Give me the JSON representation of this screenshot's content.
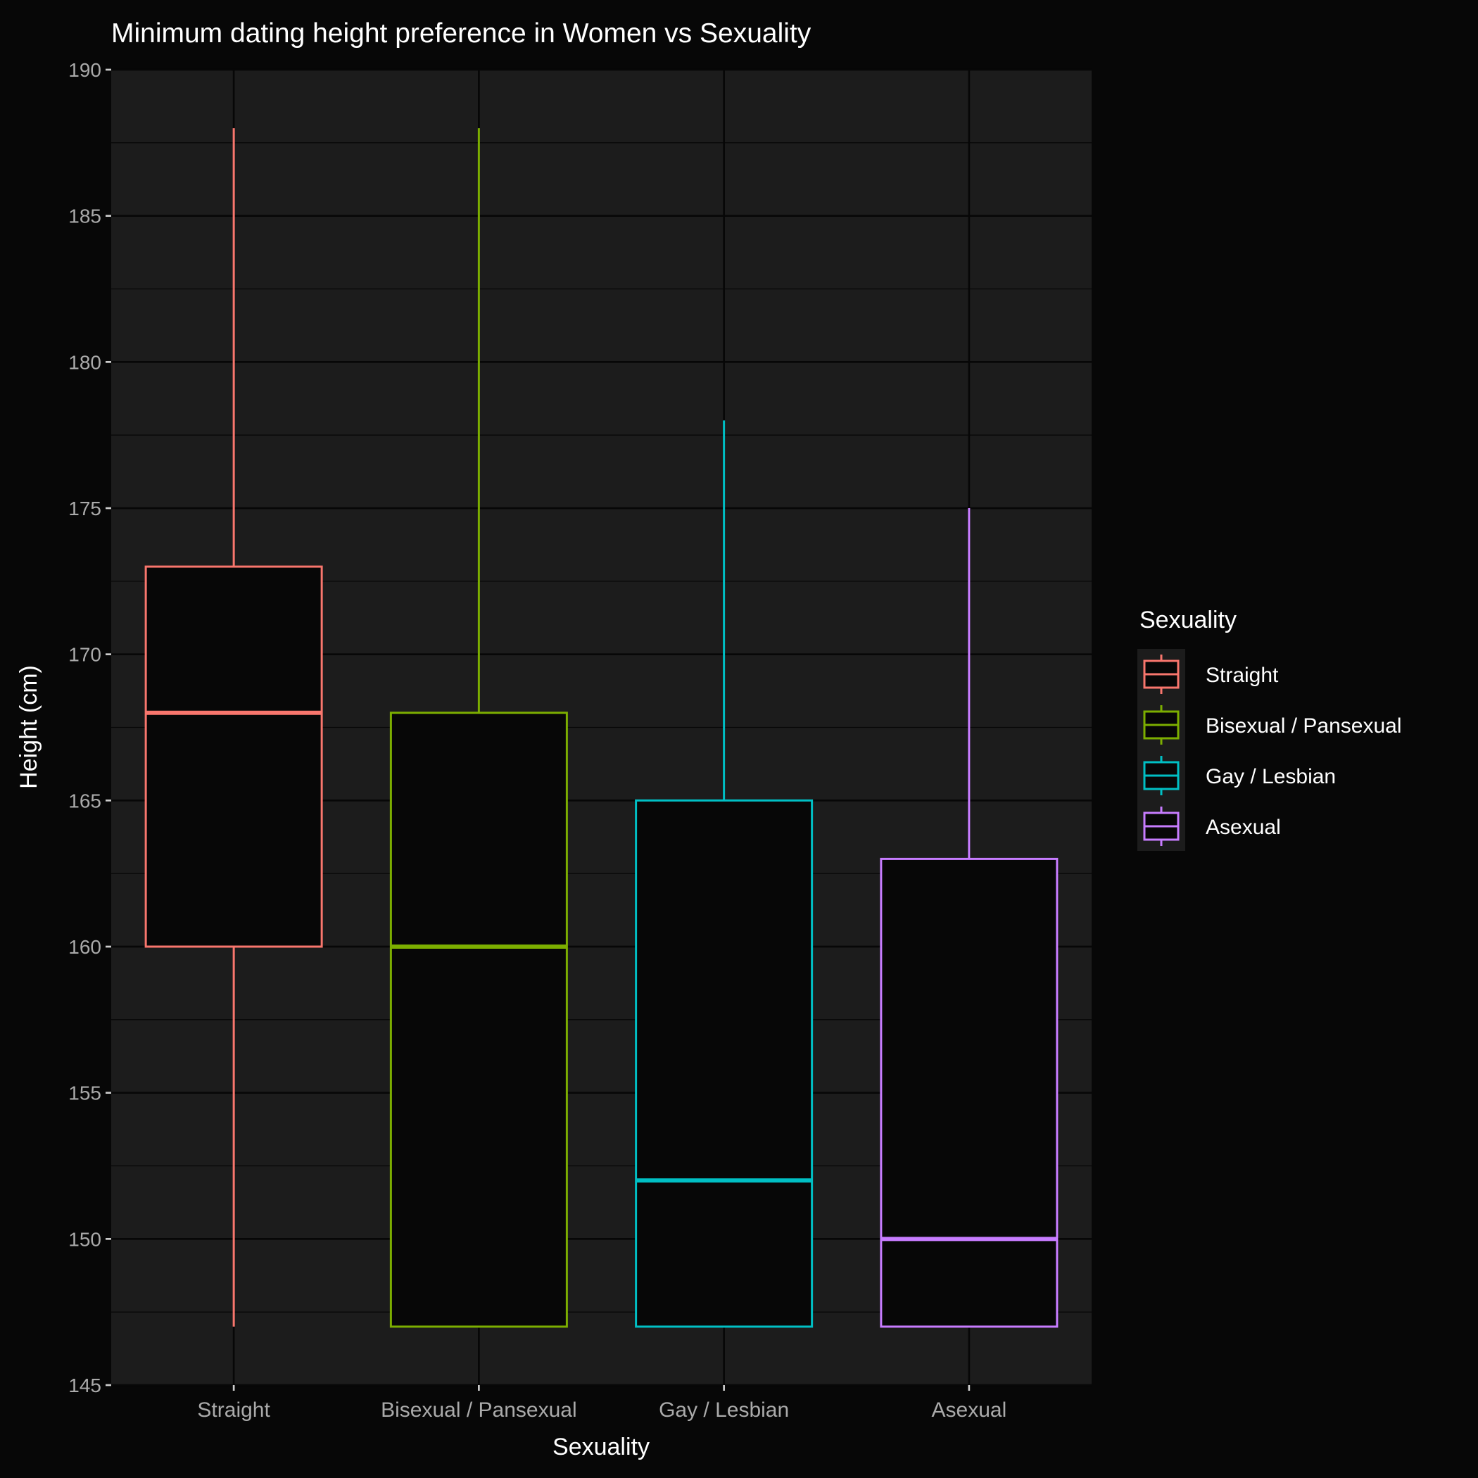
{
  "chart_data": {
    "type": "boxplot",
    "title": "Minimum dating height preference in Women vs Sexuality",
    "xlabel": "Sexuality",
    "ylabel": "Height (cm)",
    "ylim": [
      145,
      190
    ],
    "yticks": [
      145,
      150,
      155,
      160,
      165,
      170,
      175,
      180,
      185,
      190
    ],
    "categories": [
      "Straight",
      "Bisexual / Pansexual",
      "Gay / Lesbian",
      "Asexual"
    ],
    "series": [
      {
        "name": "Straight",
        "color": "#F8766D",
        "min": 147,
        "q1": 160,
        "median": 168,
        "q3": 173,
        "max": 188
      },
      {
        "name": "Bisexual / Pansexual",
        "color": "#7CAE00",
        "min": 147,
        "q1": 147,
        "median": 160,
        "q3": 168,
        "max": 188
      },
      {
        "name": "Gay / Lesbian",
        "color": "#00BFC4",
        "min": 147,
        "q1": 147,
        "median": 152,
        "q3": 165,
        "max": 178
      },
      {
        "name": "Asexual",
        "color": "#C77CFF",
        "min": 147,
        "q1": 147,
        "median": 150,
        "q3": 163,
        "max": 175
      }
    ],
    "legend": {
      "title": "Sexuality",
      "position": "right"
    },
    "grid": true
  }
}
